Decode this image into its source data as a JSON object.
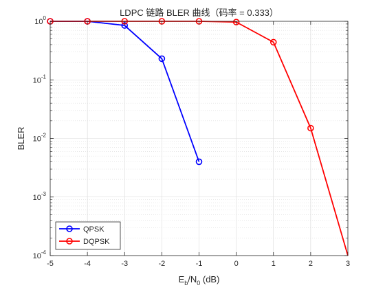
{
  "chart_data": {
    "type": "line",
    "title": "LDPC 链路 BLER 曲线（码率 = 0.333）",
    "xlabel": "E_b/N_0 (dB)",
    "ylabel": "BLER",
    "x": [
      -5,
      -4,
      -3,
      -2,
      -1,
      0,
      1,
      2,
      3
    ],
    "xlim": [
      -5,
      3
    ],
    "ylim": [
      0.0001,
      1
    ],
    "yscale": "log",
    "grid": true,
    "minor_grid": true,
    "legend_position": "bottom-left",
    "xticks": [
      "-5",
      "-4",
      "-3",
      "-2",
      "-1",
      "0",
      "1",
      "2",
      "3"
    ],
    "yticks": [
      {
        "value": 0.0001,
        "base": "10",
        "exp": "-4"
      },
      {
        "value": 0.001,
        "base": "10",
        "exp": "-3"
      },
      {
        "value": 0.01,
        "base": "10",
        "exp": "-2"
      },
      {
        "value": 0.1,
        "base": "10",
        "exp": "-1"
      },
      {
        "value": 1,
        "base": "10",
        "exp": "0"
      }
    ],
    "series": [
      {
        "name": "QPSK",
        "color": "#0000ff",
        "marker": "circle",
        "points": [
          {
            "x": -5,
            "y": 1.0
          },
          {
            "x": -4,
            "y": 1.0
          },
          {
            "x": -3,
            "y": 0.85
          },
          {
            "x": -2,
            "y": 0.23
          },
          {
            "x": -1,
            "y": 0.004
          }
        ]
      },
      {
        "name": "DQPSK",
        "color": "#ff0000",
        "marker": "circle",
        "points": [
          {
            "x": -5,
            "y": 1.0
          },
          {
            "x": -4,
            "y": 1.0
          },
          {
            "x": -3,
            "y": 1.0
          },
          {
            "x": -2,
            "y": 1.0
          },
          {
            "x": -1,
            "y": 1.0
          },
          {
            "x": 0,
            "y": 0.97
          },
          {
            "x": 1,
            "y": 0.44
          },
          {
            "x": 2,
            "y": 0.015
          },
          {
            "x": 3,
            "y": 0.0001
          }
        ],
        "marker_indices": [
          0,
          1,
          2,
          3,
          4,
          5,
          6,
          7
        ]
      }
    ]
  }
}
